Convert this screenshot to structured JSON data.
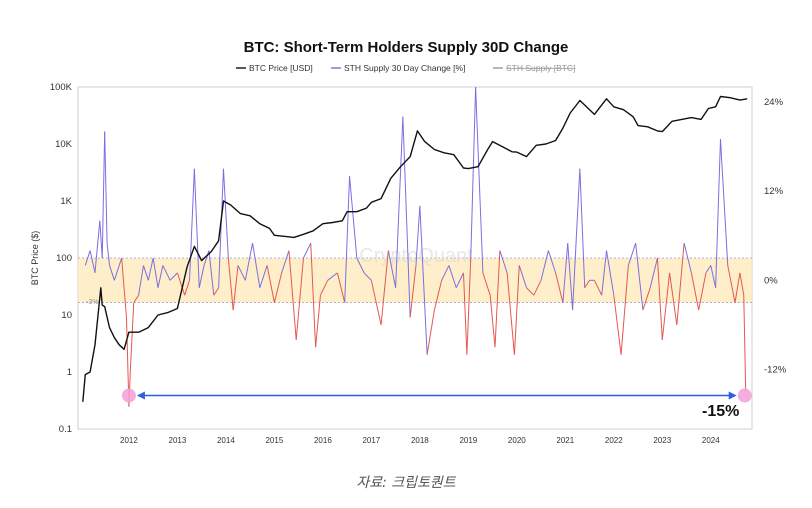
{
  "chart_data": {
    "type": "line",
    "title": "BTC: Short-Term Holders Supply 30D Change",
    "legend": [
      {
        "label": "BTC Price [USD]",
        "color": "#111111",
        "style": "solid"
      },
      {
        "label": "STH Supply 30 Day Change [%]",
        "color": "#7b6fe0",
        "style": "solid"
      },
      {
        "label": "STH Supply [BTC]",
        "color": "#999999",
        "style": "strikethrough"
      }
    ],
    "legend_placement": "top-center",
    "ylabel_left": "BTC Price ($)",
    "yscale_left": "log",
    "yticks_left": [
      "100K",
      "10K",
      "1K",
      "100",
      "10",
      "1",
      "0.1"
    ],
    "yticks_left_values": [
      100000,
      10000,
      1000,
      100,
      10,
      1,
      0.1
    ],
    "ylim_left": [
      0.1,
      100000
    ],
    "yticks_right": [
      "24%",
      "12%",
      "0%",
      "-12%"
    ],
    "yticks_right_values": [
      24,
      12,
      0,
      -12
    ],
    "ylim_right": [
      -20,
      26
    ],
    "x_ticks": [
      "2012",
      "2013",
      "2014",
      "2015",
      "2016",
      "2017",
      "2018",
      "2019",
      "2020",
      "2021",
      "2022",
      "2023",
      "2024"
    ],
    "x_tick_values": [
      2012,
      2013,
      2014,
      2015,
      2016,
      2017,
      2018,
      2019,
      2020,
      2021,
      2022,
      2023,
      2024
    ],
    "xlim": [
      2010.95,
      2024.85
    ],
    "band_label": "-3%",
    "band_range_pct": [
      -3,
      3
    ],
    "band_color": "#fde9b8",
    "grid": "off",
    "watermark": "CryptoQuant",
    "annotation": {
      "text": "-15%",
      "from_x": 2012.0,
      "to_x": 2024.7,
      "y_pct": -15.5,
      "arrow_color": "#2f5fe0",
      "marker_color": "#f5a3d8"
    },
    "series": [
      {
        "name": "BTC Price [USD]",
        "axis": "left",
        "x": [
          2011.05,
          2011.1,
          2011.2,
          2011.3,
          2011.42,
          2011.45,
          2011.5,
          2011.6,
          2011.7,
          2011.8,
          2011.9,
          2012.0,
          2012.2,
          2012.4,
          2012.6,
          2012.8,
          2013.0,
          2013.2,
          2013.35,
          2013.5,
          2013.7,
          2013.85,
          2013.95,
          2014.1,
          2014.3,
          2014.5,
          2014.7,
          2014.9,
          2015.0,
          2015.2,
          2015.4,
          2015.6,
          2015.8,
          2016.0,
          2016.2,
          2016.4,
          2016.5,
          2016.7,
          2016.9,
          2017.0,
          2017.2,
          2017.4,
          2017.6,
          2017.8,
          2017.95,
          2018.1,
          2018.3,
          2018.5,
          2018.7,
          2018.9,
          2019.0,
          2019.2,
          2019.4,
          2019.5,
          2019.7,
          2019.9,
          2020.0,
          2020.2,
          2020.4,
          2020.6,
          2020.8,
          2020.95,
          2021.1,
          2021.3,
          2021.5,
          2021.6,
          2021.85,
          2022.0,
          2022.2,
          2022.4,
          2022.5,
          2022.7,
          2022.9,
          2023.0,
          2023.2,
          2023.4,
          2023.6,
          2023.8,
          2023.95,
          2024.1,
          2024.2,
          2024.4,
          2024.6,
          2024.75
        ],
        "values": [
          0.3,
          0.9,
          1.0,
          3,
          30,
          15,
          14,
          6,
          4,
          3,
          2.5,
          5,
          5,
          6,
          10,
          11,
          13,
          70,
          160,
          90,
          130,
          200,
          1000,
          850,
          600,
          550,
          400,
          330,
          250,
          240,
          230,
          260,
          300,
          400,
          420,
          450,
          650,
          650,
          750,
          950,
          1100,
          2500,
          4000,
          6000,
          17000,
          11000,
          8000,
          7000,
          6500,
          3800,
          3700,
          4000,
          8000,
          11000,
          9000,
          7300,
          7200,
          6000,
          9500,
          10000,
          11500,
          19000,
          35000,
          58000,
          40000,
          33000,
          62000,
          45000,
          40000,
          30000,
          21000,
          20000,
          17000,
          16500,
          25000,
          27000,
          29000,
          27000,
          42000,
          45000,
          68000,
          65000,
          59000,
          62000
        ]
      },
      {
        "name": "STH Supply 30 Day Change [%]",
        "axis": "right",
        "x": [
          2011.1,
          2011.2,
          2011.3,
          2011.4,
          2011.45,
          2011.5,
          2011.55,
          2011.6,
          2011.7,
          2011.85,
          2011.95,
          2012.0,
          2012.03,
          2012.1,
          2012.2,
          2012.3,
          2012.4,
          2012.5,
          2012.6,
          2012.7,
          2012.85,
          2013.0,
          2013.15,
          2013.25,
          2013.35,
          2013.45,
          2013.55,
          2013.65,
          2013.75,
          2013.85,
          2013.95,
          2014.05,
          2014.15,
          2014.25,
          2014.4,
          2014.55,
          2014.7,
          2014.85,
          2015.0,
          2015.15,
          2015.3,
          2015.45,
          2015.6,
          2015.75,
          2015.85,
          2015.95,
          2016.1,
          2016.3,
          2016.45,
          2016.55,
          2016.7,
          2016.85,
          2017.0,
          2017.2,
          2017.35,
          2017.5,
          2017.65,
          2017.8,
          2017.92,
          2018.0,
          2018.15,
          2018.3,
          2018.45,
          2018.6,
          2018.75,
          2018.9,
          2018.97,
          2019.05,
          2019.15,
          2019.3,
          2019.45,
          2019.55,
          2019.65,
          2019.8,
          2019.95,
          2020.05,
          2020.2,
          2020.35,
          2020.5,
          2020.65,
          2020.8,
          2020.95,
          2021.05,
          2021.15,
          2021.3,
          2021.4,
          2021.5,
          2021.6,
          2021.75,
          2021.85,
          2022.0,
          2022.15,
          2022.3,
          2022.45,
          2022.6,
          2022.75,
          2022.9,
          2023.0,
          2023.15,
          2023.3,
          2023.45,
          2023.6,
          2023.75,
          2023.9,
          2024.0,
          2024.1,
          2024.2,
          2024.35,
          2024.5,
          2024.6,
          2024.68,
          2024.72
        ],
        "values": [
          2,
          4,
          1,
          8,
          3,
          20,
          5,
          2,
          0,
          3,
          -5,
          -17,
          -12,
          -3,
          -2,
          2,
          0,
          3,
          -1,
          2,
          0,
          1,
          -2,
          0,
          15,
          -1,
          2,
          4,
          -2,
          -1,
          15,
          3,
          -4,
          2,
          0,
          5,
          -1,
          2,
          -3,
          1,
          4,
          -8,
          3,
          5,
          -9,
          -2,
          0,
          1,
          -3,
          14,
          3,
          1,
          0,
          -6,
          4,
          -1,
          22,
          -5,
          2,
          10,
          -10,
          -4,
          0,
          2,
          -1,
          1,
          -10,
          3,
          26,
          1,
          -2,
          -9,
          4,
          1,
          -10,
          2,
          -1,
          -2,
          0,
          4,
          1,
          -3,
          5,
          -4,
          15,
          -1,
          0,
          0,
          -2,
          4,
          -2,
          -10,
          2,
          5,
          -4,
          -1,
          3,
          -8,
          1,
          -6,
          5,
          1,
          -4,
          1,
          2,
          -1,
          19,
          2,
          -3,
          1,
          -2,
          -15
        ]
      }
    ]
  },
  "caption": "자료: 크립토퀀트"
}
